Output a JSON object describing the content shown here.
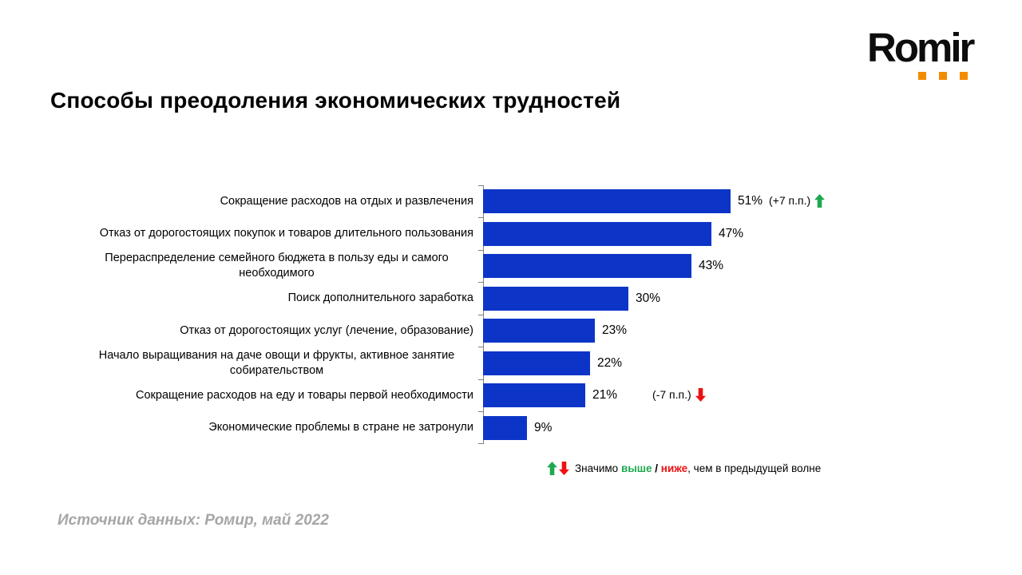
{
  "logo": {
    "text": "Romir",
    "accent_color": "#F28C00"
  },
  "title": "Способы преодоления экономических трудностей",
  "source": "Источник данных: Ромир, май 2022",
  "legend": {
    "prefix": "Значимо ",
    "higher": "выше",
    "separator": " / ",
    "lower": "ниже",
    "suffix": ", чем в предыдущей волне"
  },
  "colors": {
    "bar": "#0C35C8",
    "up_arrow": "#1FA84F",
    "down_arrow": "#EE1111",
    "axis": "#7f7f7f",
    "source_text": "#A6A6A6",
    "logo_accent": "#F28C00"
  },
  "chart_data": {
    "type": "bar",
    "orientation": "horizontal",
    "unit": "%",
    "xlim": [
      0,
      71
    ],
    "grid": false,
    "legend_position": "bottom-right",
    "categories": [
      "Сокращение расходов на отдых и развлечения",
      "Отказ от дорогостоящих покупок и товаров длительного пользования",
      "Перераспределение семейного бюджета в пользу еды и самого необходимого",
      "Поиск дополнительного заработка",
      "Отказ от дорогостоящих услуг (лечение, образование)",
      "Начало выращивания на даче овощи и фрукты, активное занятие собирательством",
      "Сокращение расходов на еду и товары первой необходимости",
      "Экономические проблемы в стране не затронули"
    ],
    "values": [
      51,
      47,
      43,
      30,
      23,
      22,
      21,
      9
    ],
    "rows": [
      {
        "label": "Сокращение расходов на отдых и развлечения",
        "value": 51,
        "value_label": "51%",
        "change_label": "(+7 п.п.)",
        "change_direction": "up"
      },
      {
        "label": "Отказ от дорогостоящих покупок и товаров длительного пользования",
        "value": 47,
        "value_label": "47%"
      },
      {
        "label": "Перераспределение семейного бюджета в пользу еды и самого необходимого",
        "value": 43,
        "value_label": "43%"
      },
      {
        "label": "Поиск дополнительного заработка",
        "value": 30,
        "value_label": "30%"
      },
      {
        "label": "Отказ от дорогостоящих услуг (лечение, образование)",
        "value": 23,
        "value_label": "23%"
      },
      {
        "label": "Начало выращивания на даче овощи и фрукты, активное занятие собирательством",
        "value": 22,
        "value_label": "22%"
      },
      {
        "label": "Сокращение расходов на еду и товары первой необходимости",
        "value": 21,
        "value_label": "21%",
        "change_label": "(-7 п.п.)",
        "change_direction": "down"
      },
      {
        "label": "Экономические проблемы в стране не затронули",
        "value": 9,
        "value_label": "9%"
      }
    ]
  }
}
